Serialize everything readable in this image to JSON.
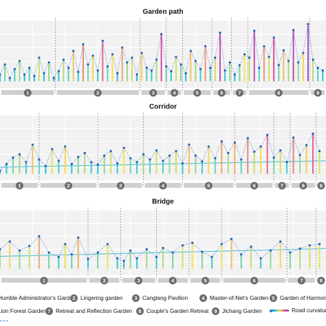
{
  "colors": {
    "panel_bg": "#f2f2f2",
    "grid": "#ffffff",
    "bar": "#cfcfcf",
    "badge": "#6b6b6b",
    "point": "#1f5fb0",
    "trend": "#5ac3d8",
    "divider": "#8a8a8a",
    "gradient": [
      "#2d6fd6",
      "#2cc7d8",
      "#f7e24a",
      "#e0499a",
      "#8f4ad6"
    ]
  },
  "chart_data": [
    {
      "type": "line",
      "title": "Garden path",
      "x_extent": [
        0,
        100
      ],
      "ylim": [
        0,
        10
      ],
      "grid": true,
      "segments": [
        {
          "id": "1",
          "start": 0,
          "end": 17
        },
        {
          "id": "2",
          "start": 17,
          "end": 43
        },
        {
          "id": "3",
          "start": 43,
          "end": 51
        },
        {
          "id": "4",
          "start": 51,
          "end": 56
        },
        {
          "id": "5",
          "start": 56,
          "end": 65
        },
        {
          "id": "6",
          "start": 65,
          "end": 71
        },
        {
          "id": "7",
          "start": 71,
          "end": 76
        },
        {
          "id": "8",
          "start": 76,
          "end": 95
        },
        {
          "id": "9",
          "start": 95,
          "end": 100
        }
      ],
      "series": [
        {
          "x": [
            0,
            1.5,
            3,
            4.5,
            6,
            7.5,
            9,
            10.5,
            12,
            13.5,
            15,
            16.5,
            18,
            19.5,
            21,
            22.5,
            24,
            25.5,
            27,
            28.5,
            30,
            31.5,
            33,
            34.5,
            36,
            37.5,
            39,
            40.5,
            42,
            43.5,
            45,
            46.5,
            48,
            49.5,
            51,
            52.5,
            54,
            55.5,
            57,
            58.5,
            60,
            61.5,
            63,
            64.5,
            66,
            67.5,
            69,
            70.5,
            72,
            73.5,
            75,
            76.5,
            78,
            79.5,
            81,
            82.5,
            84,
            85.5,
            87,
            88.5,
            90,
            91.5,
            93,
            94.5,
            96,
            97.5,
            99
          ],
          "values": [
            2,
            3.5,
            1.5,
            2.8,
            4,
            2,
            3,
            1.8,
            4.5,
            2.2,
            3.8,
            1.5,
            2.5,
            4.2,
            3,
            5.5,
            2.4,
            6.5,
            3.5,
            4.8,
            2.6,
            7,
            3.2,
            5,
            2.2,
            6,
            3.8,
            4.5,
            2,
            5.2,
            3,
            2.6,
            4.2,
            8,
            3.2,
            2.5,
            4.6,
            3.5,
            2.2,
            5.5,
            4,
            2.8,
            6.2,
            3,
            4.5,
            8.2,
            2.6,
            3.8,
            2,
            3.4,
            5,
            4.5,
            8.5,
            3,
            6.2,
            4.6,
            7.5,
            3.4,
            5.6,
            4,
            8.6,
            3.8,
            5.2,
            9.5,
            4.2,
            3,
            2.6
          ]
        }
      ]
    },
    {
      "type": "line",
      "title": "Corridor",
      "x_extent": [
        0,
        100
      ],
      "ylim": [
        0,
        10
      ],
      "grid": true,
      "segments": [
        {
          "id": "1",
          "start": 0,
          "end": 12
        },
        {
          "id": "2",
          "start": 12,
          "end": 30
        },
        {
          "id": "3",
          "start": 30,
          "end": 44
        },
        {
          "id": "4",
          "start": 44,
          "end": 56
        },
        {
          "id": "5",
          "start": 56,
          "end": 72
        },
        {
          "id": "6",
          "start": 72,
          "end": 84
        },
        {
          "id": "7",
          "start": 84,
          "end": 89
        },
        {
          "id": "8",
          "start": 89,
          "end": 97
        },
        {
          "id": "9",
          "start": 97,
          "end": 100
        }
      ],
      "series": [
        {
          "x": [
            0,
            2,
            4,
            6,
            8,
            10,
            12,
            14,
            16,
            18,
            20,
            22,
            24,
            26,
            28,
            30,
            32,
            34,
            36,
            38,
            40,
            42,
            44,
            46,
            48,
            50,
            52,
            54,
            56,
            58,
            60,
            62,
            64,
            66,
            68,
            70,
            72,
            74,
            76,
            78,
            80,
            82,
            84,
            86,
            88,
            90,
            92,
            94,
            96,
            98
          ],
          "values": [
            1.5,
            2.5,
            3.5,
            4,
            2.8,
            5.5,
            3.2,
            2.2,
            4.8,
            3,
            5.2,
            2.5,
            3.6,
            4.2,
            2.8,
            2.4,
            3.8,
            4.5,
            2.6,
            5,
            3.4,
            2.8,
            4,
            3.2,
            4.6,
            3,
            3.8,
            4.5,
            2.6,
            5.5,
            3.8,
            2.9,
            5.2,
            3.4,
            6,
            4.2,
            5.8,
            3.2,
            6.5,
            4.4,
            5.2,
            7,
            3.5,
            4.6,
            2.8,
            6.6,
            3.9,
            5.4,
            7.2,
            4.5
          ]
        }
      ],
      "trend": {
        "start": 2.0,
        "end": 3.0
      }
    },
    {
      "type": "line",
      "title": "Bridge",
      "x_extent": [
        0,
        100
      ],
      "ylim": [
        0,
        10
      ],
      "grid": true,
      "segments": [
        {
          "id": "1",
          "start": 0,
          "end": 27
        },
        {
          "id": "2",
          "start": 27,
          "end": 37
        },
        {
          "id": "3",
          "start": 37,
          "end": 48
        },
        {
          "id": "4",
          "start": 48,
          "end": 58
        },
        {
          "id": "5",
          "start": 58,
          "end": 68
        },
        {
          "id": "6",
          "start": 68,
          "end": 88
        },
        {
          "id": "7",
          "start": 88,
          "end": 97
        },
        {
          "id": "8",
          "start": 97,
          "end": 100
        }
      ],
      "series": [
        {
          "x": [
            0,
            3,
            6,
            9,
            12,
            15,
            18,
            20,
            22,
            24,
            27,
            30,
            33,
            36,
            38,
            40,
            42,
            45,
            48,
            50,
            53,
            56,
            59,
            62,
            65,
            68,
            71,
            74,
            77,
            80,
            83,
            86,
            89,
            92,
            95,
            98
          ],
          "values": [
            4,
            5.2,
            3.8,
            4.5,
            6,
            3.5,
            2.8,
            4.8,
            3.2,
            5.8,
            2.5,
            3.5,
            4.8,
            2.6,
            2.2,
            3.8,
            2.6,
            4,
            2.8,
            4.2,
            3.5,
            4.6,
            5,
            3.6,
            2.8,
            4.8,
            5.6,
            3.2,
            4.4,
            2.6,
            3.8,
            5.2,
            3.5,
            4.1,
            4.6,
            4.8
          ]
        }
      ],
      "trend": {
        "start": 2.9,
        "end": 4.1
      }
    }
  ],
  "legend": [
    {
      "badge": "1",
      "label": "Humble Administrator's Garden"
    },
    {
      "badge": "2",
      "label": "Lingering  garden"
    },
    {
      "badge": "3",
      "label": "Canglang Pavilion"
    },
    {
      "badge": "4",
      "label": "Master-of-Net's Garden"
    },
    {
      "badge": "5",
      "label": "Garden of Harmony"
    },
    {
      "badge": "6",
      "label": "Lion Forest Garden"
    },
    {
      "badge": "7",
      "label": "Retreat and Reflection Garden"
    },
    {
      "badge": "8",
      "label": "Couple's Garden Retreat"
    },
    {
      "badge": "9",
      "label": "Jichang Garden"
    },
    {
      "badge": "",
      "label": "Road curvature"
    }
  ]
}
